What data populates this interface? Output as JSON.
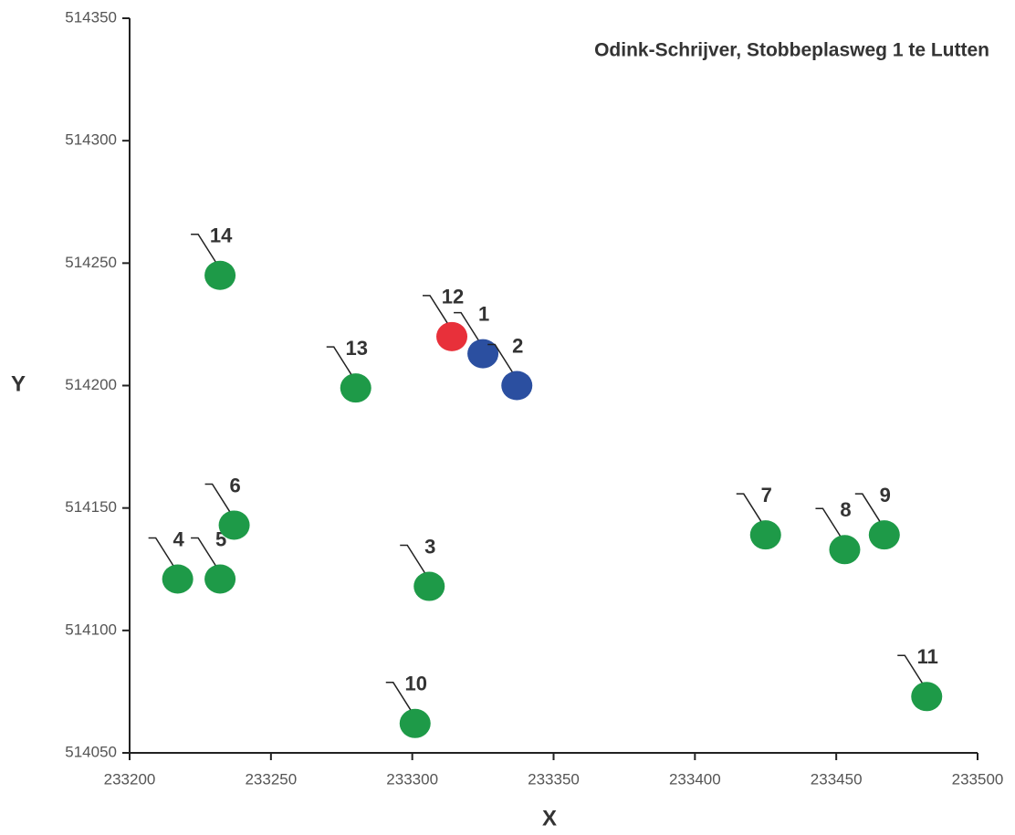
{
  "chart_data": {
    "type": "scatter",
    "title": "Odink-Schrijver, Stobbeplasweg 1 te Lutten",
    "x_label": "X",
    "y_label": "Y",
    "xlim": [
      233200,
      233500
    ],
    "xticks": [
      233200,
      233250,
      233300,
      233350,
      233400,
      233450,
      233500
    ],
    "ylim": [
      514050,
      514350
    ],
    "yticks": [
      514050,
      514100,
      514150,
      514200,
      514250,
      514300,
      514350
    ],
    "grid": false,
    "series": [
      {
        "labels": [
          "1",
          "2",
          "3",
          "4",
          "5",
          "6",
          "7",
          "8",
          "9",
          "10",
          "11",
          "12",
          "13",
          "14"
        ],
        "x": [
          233325,
          233337,
          233306,
          233217,
          233232,
          233237,
          233425,
          233453,
          233467,
          233301,
          233482,
          233314,
          233280,
          233232
        ],
        "values": [
          514213,
          514200,
          514118,
          514121,
          514121,
          514143,
          514139,
          514133,
          514139,
          514062,
          514073,
          514220,
          514199,
          514245
        ],
        "colors": [
          "#2b4fa0",
          "#2b4fa0",
          "#1e9a48",
          "#1e9a48",
          "#1e9a48",
          "#1e9a48",
          "#1e9a48",
          "#1e9a48",
          "#1e9a48",
          "#1e9a48",
          "#1e9a48",
          "#e8303a",
          "#1e9a48",
          "#1e9a48"
        ]
      }
    ]
  }
}
